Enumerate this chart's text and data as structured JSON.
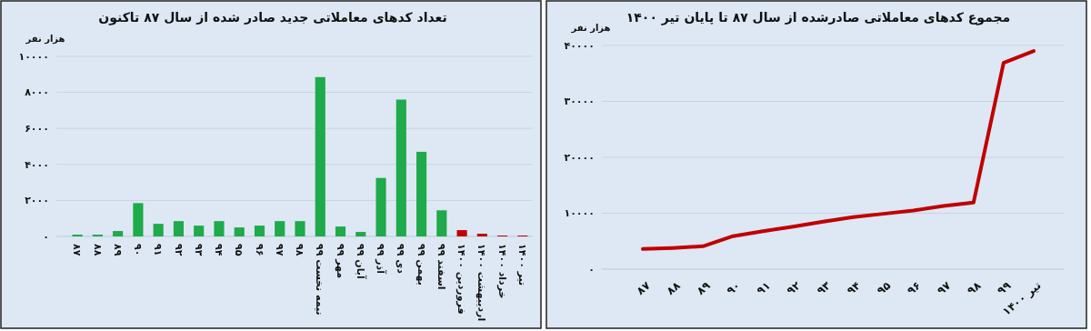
{
  "chart_data": [
    {
      "type": "bar",
      "title": "تعداد کدهای معاملاتی جدید صادر شده از سال ۸۷ تاکنون",
      "ylabel": "هزار نفر",
      "categories": [
        "۸۷",
        "۸۸",
        "۸۹",
        "۹۰",
        "۹۱",
        "۹۲",
        "۹۳",
        "۹۴",
        "۹۵",
        "۹۶",
        "۹۷",
        "۹۸",
        "نیمه نخست ۹۹",
        "مهر ۹۹",
        "آبان ۹۹",
        "آذر ۹۹",
        "دی ۹۹",
        "بهمن ۹۹",
        "اسفند ۹۹",
        "فروردین ۱۴۰۰",
        "اردیبهشت ۱۴۰۰",
        "خرداد ۱۴۰۰",
        "تیر ۱۴۰۰"
      ],
      "values": [
        100,
        100,
        300,
        1850,
        700,
        850,
        600,
        850,
        500,
        600,
        850,
        850,
        8850,
        550,
        250,
        3250,
        7600,
        4700,
        1450,
        350,
        150,
        50,
        50
      ],
      "colors": [
        "#1faa4b",
        "#1faa4b",
        "#1faa4b",
        "#1faa4b",
        "#1faa4b",
        "#1faa4b",
        "#1faa4b",
        "#1faa4b",
        "#1faa4b",
        "#1faa4b",
        "#1faa4b",
        "#1faa4b",
        "#1faa4b",
        "#1faa4b",
        "#1faa4b",
        "#1faa4b",
        "#1faa4b",
        "#1faa4b",
        "#1faa4b",
        "#c00000",
        "#c00000",
        "#c00000",
        "#c00000"
      ],
      "ylim": [
        0,
        10000
      ],
      "yticks": [
        {
          "value": 0,
          "label": "۰"
        },
        {
          "value": 2000,
          "label": "۲۰۰۰"
        },
        {
          "value": 4000,
          "label": "۴۰۰۰"
        },
        {
          "value": 6000,
          "label": "۶۰۰۰"
        },
        {
          "value": 8000,
          "label": "۸۰۰۰"
        },
        {
          "value": 10000,
          "label": "۱۰۰۰۰"
        }
      ],
      "grid": "y"
    },
    {
      "type": "line",
      "title": "مجموع کدهای معاملاتی صادرشده از سال ۸۷ تا پایان تیر ۱۴۰۰",
      "ylabel": "هزار نفر",
      "categories": [
        "۸۷",
        "۸۸",
        "۸۹",
        "۹۰",
        "۹۱",
        "۹۲",
        "۹۳",
        "۹۴",
        "۹۵",
        "۹۶",
        "۹۷",
        "۹۸",
        "۹۹",
        "تیر ۱۴۰۰"
      ],
      "series": [
        {
          "color": "#c00000",
          "values": [
            3600,
            3800,
            4100,
            5900,
            6800,
            7600,
            8500,
            9300,
            9900,
            10500,
            11300,
            11900,
            36900,
            39000
          ]
        }
      ],
      "ylim": [
        0,
        40000
      ],
      "yticks": [
        {
          "value": 0,
          "label": "۰"
        },
        {
          "value": 10000,
          "label": "۱۰۰۰۰"
        },
        {
          "value": 20000,
          "label": "۲۰۰۰۰"
        },
        {
          "value": 30000,
          "label": "۳۰۰۰۰"
        },
        {
          "value": 40000,
          "label": "۴۰۰۰۰"
        }
      ],
      "grid": "y",
      "marker": "none"
    }
  ]
}
